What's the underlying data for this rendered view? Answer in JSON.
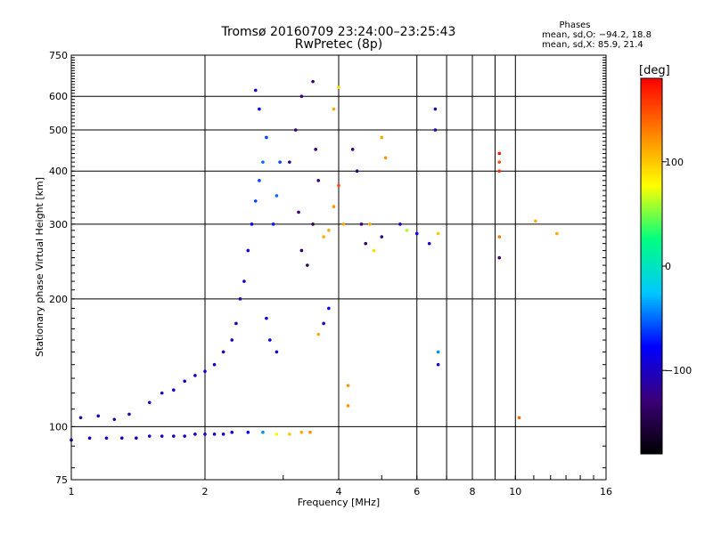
{
  "chart_data": {
    "type": "scatter",
    "title": "Tromsø 20160709 23:24:00–23:25:43",
    "subtitle": "RwPretec (8p)",
    "xlabel": "Frequency [MHz]",
    "ylabel": "Stationary phase Virtual Height [km]",
    "x_scale": "log",
    "y_scale": "log",
    "xlim": [
      1,
      16
    ],
    "ylim": [
      75,
      750
    ],
    "x_ticks": [
      1,
      2,
      4,
      6,
      8,
      10,
      16
    ],
    "x_tick_labels": [
      "1",
      "2",
      "4",
      "6",
      "8",
      "10",
      "16"
    ],
    "x_grid": [
      2,
      4,
      6,
      7,
      8,
      9,
      10
    ],
    "y_ticks": [
      75,
      100,
      200,
      300,
      400,
      500,
      600,
      750
    ],
    "y_tick_labels": [
      "75",
      "100",
      "200",
      "300",
      "400",
      "500",
      "600",
      "750"
    ],
    "grid": true,
    "info": {
      "heading": "Phases",
      "line_o": "mean, sd,O: −94.2, 18.8",
      "line_x": "mean, sd,X:  85.9, 21.4"
    },
    "colorbar": {
      "label": "[deg]",
      "range": [
        -180,
        180
      ],
      "ticks": [
        100,
        0,
        -100
      ],
      "tick_labels": [
        "100",
        "0",
        "−100"
      ],
      "stops": [
        "#000000",
        "#3b0078",
        "#0000ff",
        "#00c8ff",
        "#00ff80",
        "#ffff00",
        "#ff8000",
        "#ff0000"
      ]
    },
    "series": [
      {
        "points": [
          {
            "x": 1.0,
            "y": 93,
            "phase": -100
          },
          {
            "x": 1.1,
            "y": 94,
            "phase": -100
          },
          {
            "x": 1.2,
            "y": 94,
            "phase": -100
          },
          {
            "x": 1.3,
            "y": 94,
            "phase": -100
          },
          {
            "x": 1.4,
            "y": 94,
            "phase": -100
          },
          {
            "x": 1.5,
            "y": 95,
            "phase": -100
          },
          {
            "x": 1.6,
            "y": 95,
            "phase": -100
          },
          {
            "x": 1.7,
            "y": 95,
            "phase": -100
          },
          {
            "x": 1.8,
            "y": 95,
            "phase": -100
          },
          {
            "x": 1.9,
            "y": 96,
            "phase": -100
          },
          {
            "x": 2.0,
            "y": 96,
            "phase": -100
          },
          {
            "x": 2.1,
            "y": 96,
            "phase": -100
          },
          {
            "x": 2.2,
            "y": 96,
            "phase": -100
          },
          {
            "x": 2.3,
            "y": 97,
            "phase": -100
          },
          {
            "x": 2.5,
            "y": 97,
            "phase": -80
          },
          {
            "x": 2.7,
            "y": 97,
            "phase": -40
          },
          {
            "x": 2.9,
            "y": 96,
            "phase": 80
          },
          {
            "x": 3.1,
            "y": 96,
            "phase": 100
          },
          {
            "x": 3.3,
            "y": 97,
            "phase": 110
          },
          {
            "x": 3.45,
            "y": 97,
            "phase": 120
          },
          {
            "x": 1.05,
            "y": 105,
            "phase": -110
          },
          {
            "x": 1.15,
            "y": 106,
            "phase": -110
          },
          {
            "x": 1.25,
            "y": 104,
            "phase": -110
          },
          {
            "x": 1.35,
            "y": 107,
            "phase": -110
          },
          {
            "x": 1.5,
            "y": 114,
            "phase": -100
          },
          {
            "x": 1.6,
            "y": 120,
            "phase": -100
          },
          {
            "x": 1.7,
            "y": 122,
            "phase": -100
          },
          {
            "x": 1.8,
            "y": 128,
            "phase": -100
          },
          {
            "x": 1.9,
            "y": 132,
            "phase": -100
          },
          {
            "x": 2.0,
            "y": 135,
            "phase": -100
          },
          {
            "x": 2.1,
            "y": 140,
            "phase": -100
          },
          {
            "x": 2.2,
            "y": 150,
            "phase": -100
          },
          {
            "x": 2.3,
            "y": 160,
            "phase": -100
          },
          {
            "x": 2.35,
            "y": 175,
            "phase": -100
          },
          {
            "x": 2.4,
            "y": 200,
            "phase": -100
          },
          {
            "x": 2.45,
            "y": 220,
            "phase": -100
          },
          {
            "x": 2.5,
            "y": 260,
            "phase": -90
          },
          {
            "x": 2.55,
            "y": 300,
            "phase": -80
          },
          {
            "x": 2.6,
            "y": 340,
            "phase": -60
          },
          {
            "x": 2.65,
            "y": 380,
            "phase": -60
          },
          {
            "x": 2.7,
            "y": 420,
            "phase": -50
          },
          {
            "x": 2.75,
            "y": 480,
            "phase": -60
          },
          {
            "x": 2.65,
            "y": 560,
            "phase": -80
          },
          {
            "x": 2.6,
            "y": 620,
            "phase": -90
          },
          {
            "x": 2.85,
            "y": 300,
            "phase": -70
          },
          {
            "x": 2.9,
            "y": 350,
            "phase": -50
          },
          {
            "x": 2.95,
            "y": 420,
            "phase": -60
          },
          {
            "x": 2.8,
            "y": 160,
            "phase": -90
          },
          {
            "x": 2.9,
            "y": 150,
            "phase": -80
          },
          {
            "x": 2.75,
            "y": 180,
            "phase": -90
          },
          {
            "x": 3.1,
            "y": 420,
            "phase": -120
          },
          {
            "x": 3.2,
            "y": 500,
            "phase": -130
          },
          {
            "x": 3.3,
            "y": 600,
            "phase": -130
          },
          {
            "x": 3.25,
            "y": 320,
            "phase": -130
          },
          {
            "x": 3.3,
            "y": 260,
            "phase": -140
          },
          {
            "x": 3.4,
            "y": 240,
            "phase": -140
          },
          {
            "x": 3.5,
            "y": 300,
            "phase": -140
          },
          {
            "x": 3.6,
            "y": 380,
            "phase": -130
          },
          {
            "x": 3.55,
            "y": 450,
            "phase": -130
          },
          {
            "x": 3.5,
            "y": 650,
            "phase": -130
          },
          {
            "x": 3.7,
            "y": 280,
            "phase": 110
          },
          {
            "x": 3.8,
            "y": 290,
            "phase": 110
          },
          {
            "x": 3.9,
            "y": 330,
            "phase": 120
          },
          {
            "x": 4.0,
            "y": 370,
            "phase": 150
          },
          {
            "x": 4.1,
            "y": 300,
            "phase": 110
          },
          {
            "x": 3.9,
            "y": 560,
            "phase": 110
          },
          {
            "x": 4.0,
            "y": 630,
            "phase": 90
          },
          {
            "x": 3.7,
            "y": 175,
            "phase": -100
          },
          {
            "x": 3.8,
            "y": 190,
            "phase": -80
          },
          {
            "x": 3.6,
            "y": 165,
            "phase": 110
          },
          {
            "x": 4.3,
            "y": 450,
            "phase": -130
          },
          {
            "x": 4.4,
            "y": 400,
            "phase": -120
          },
          {
            "x": 4.5,
            "y": 300,
            "phase": -130
          },
          {
            "x": 4.6,
            "y": 270,
            "phase": -140
          },
          {
            "x": 4.7,
            "y": 300,
            "phase": 110
          },
          {
            "x": 4.8,
            "y": 260,
            "phase": 90
          },
          {
            "x": 5.0,
            "y": 480,
            "phase": 110
          },
          {
            "x": 5.1,
            "y": 430,
            "phase": 120
          },
          {
            "x": 5.0,
            "y": 280,
            "phase": -120
          },
          {
            "x": 5.5,
            "y": 300,
            "phase": -100
          },
          {
            "x": 5.7,
            "y": 290,
            "phase": 60
          },
          {
            "x": 6.0,
            "y": 285,
            "phase": -80
          },
          {
            "x": 6.4,
            "y": 270,
            "phase": -100
          },
          {
            "x": 6.7,
            "y": 285,
            "phase": 100
          },
          {
            "x": 6.6,
            "y": 560,
            "phase": -110
          },
          {
            "x": 6.6,
            "y": 500,
            "phase": -110
          },
          {
            "x": 6.7,
            "y": 150,
            "phase": -40
          },
          {
            "x": 6.7,
            "y": 140,
            "phase": -90
          },
          {
            "x": 4.2,
            "y": 125,
            "phase": 120
          },
          {
            "x": 4.2,
            "y": 112,
            "phase": 120
          },
          {
            "x": 9.2,
            "y": 440,
            "phase": 170
          },
          {
            "x": 9.2,
            "y": 420,
            "phase": 150
          },
          {
            "x": 9.2,
            "y": 400,
            "phase": 160
          },
          {
            "x": 9.2,
            "y": 280,
            "phase": 130
          },
          {
            "x": 9.2,
            "y": 250,
            "phase": -130
          },
          {
            "x": 10.2,
            "y": 105,
            "phase": 140
          },
          {
            "x": 11.1,
            "y": 305,
            "phase": 110
          },
          {
            "x": 12.4,
            "y": 285,
            "phase": 110
          }
        ]
      }
    ]
  }
}
